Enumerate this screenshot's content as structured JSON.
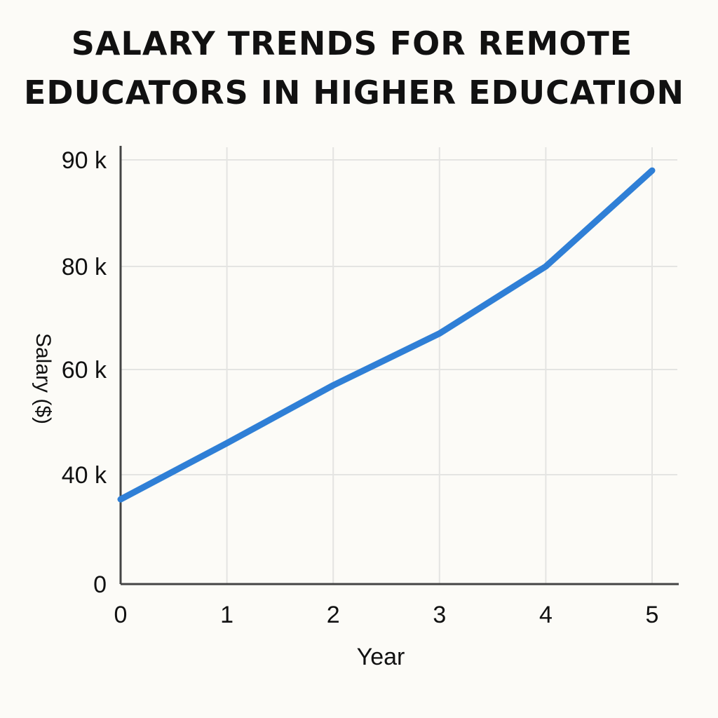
{
  "chart_data": {
    "type": "line",
    "title_lines": [
      "SALARY TRENDS FOR REMOTE",
      "EDUCATORS IN HIGHER EDUCATION"
    ],
    "xlabel": "Year",
    "ylabel": "Salary ($)",
    "x": [
      0,
      1,
      2,
      3,
      4,
      5
    ],
    "xticks": [
      0,
      1,
      2,
      3,
      4,
      5
    ],
    "xtick_labels": [
      "0",
      "1",
      "2",
      "3",
      "4",
      "5"
    ],
    "yticks": [
      {
        "label": "0",
        "value": 0
      },
      {
        "label": "40 k",
        "value": 40000
      },
      {
        "label": "60 k",
        "value": 60000
      },
      {
        "label": "80 k",
        "value": 80000
      },
      {
        "label": "90 k",
        "value": 90000
      }
    ],
    "series": [
      {
        "color": "#2f7fd6",
        "values": [
          31000,
          46000,
          57000,
          67000,
          80000,
          89000
        ]
      }
    ],
    "xlim": [
      0,
      5
    ],
    "grid": true,
    "legend": false
  }
}
